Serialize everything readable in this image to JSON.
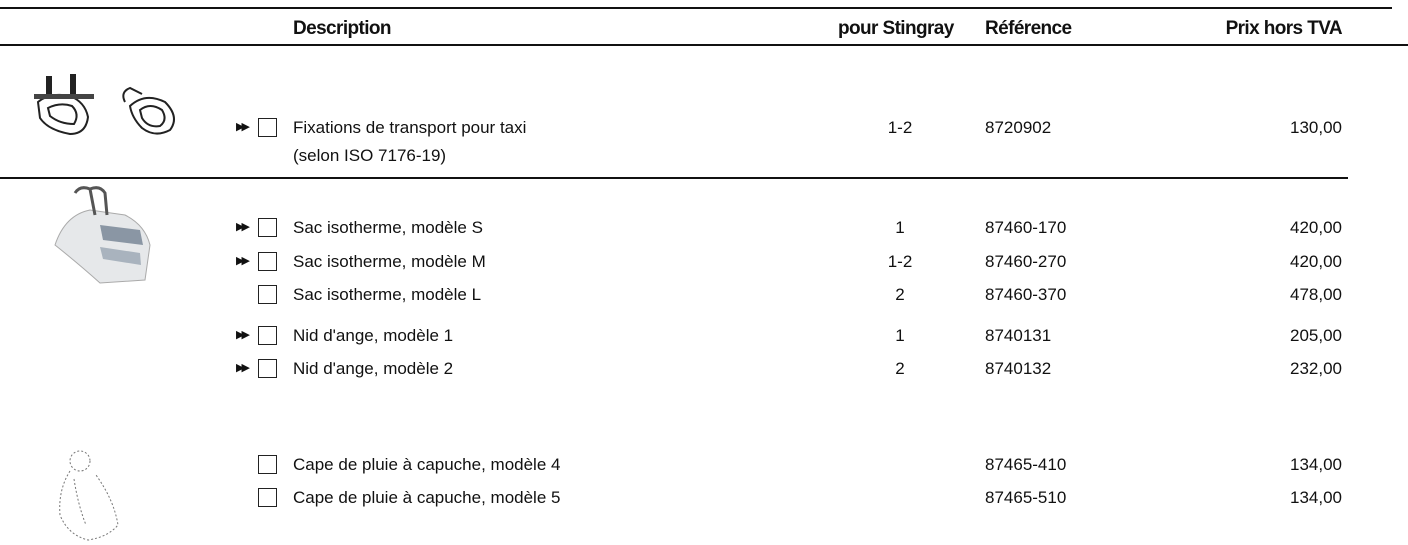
{
  "header": {
    "description": "Description",
    "stingray": "pour Stingray",
    "reference": "Référence",
    "price": "Prix hors TVA"
  },
  "rows": [
    {
      "arrow": true,
      "description": [
        "Fixations de transport pour taxi",
        "(selon ISO 7176-19)"
      ],
      "stingray": "1-2",
      "reference": "8720902",
      "price": "130,00"
    },
    {
      "arrow": true,
      "description": [
        "Sac isotherme, modèle S"
      ],
      "stingray": "1",
      "reference": "87460-170",
      "price": "420,00"
    },
    {
      "arrow": true,
      "description": [
        "Sac isotherme, modèle M"
      ],
      "stingray": "1-2",
      "reference": "87460-270",
      "price": "420,00"
    },
    {
      "arrow": false,
      "description": [
        "Sac isotherme, modèle L"
      ],
      "stingray": "2",
      "reference": "87460-370",
      "price": "478,00"
    },
    {
      "arrow": true,
      "description": [
        "Nid d'ange, modèle 1"
      ],
      "stingray": "1",
      "reference": "8740131",
      "price": "205,00"
    },
    {
      "arrow": true,
      "description": [
        "Nid d'ange, modèle 2"
      ],
      "stingray": "2",
      "reference": "8740132",
      "price": "232,00"
    },
    {
      "arrow": false,
      "description": [
        "Cape de pluie à capuche, modèle 4"
      ],
      "reference": "87465-410",
      "price": "134,00"
    },
    {
      "arrow": false,
      "description": [
        "Cape de pluie à capuche, modèle 5"
      ],
      "reference": "87465-510",
      "price": "134,00"
    }
  ]
}
